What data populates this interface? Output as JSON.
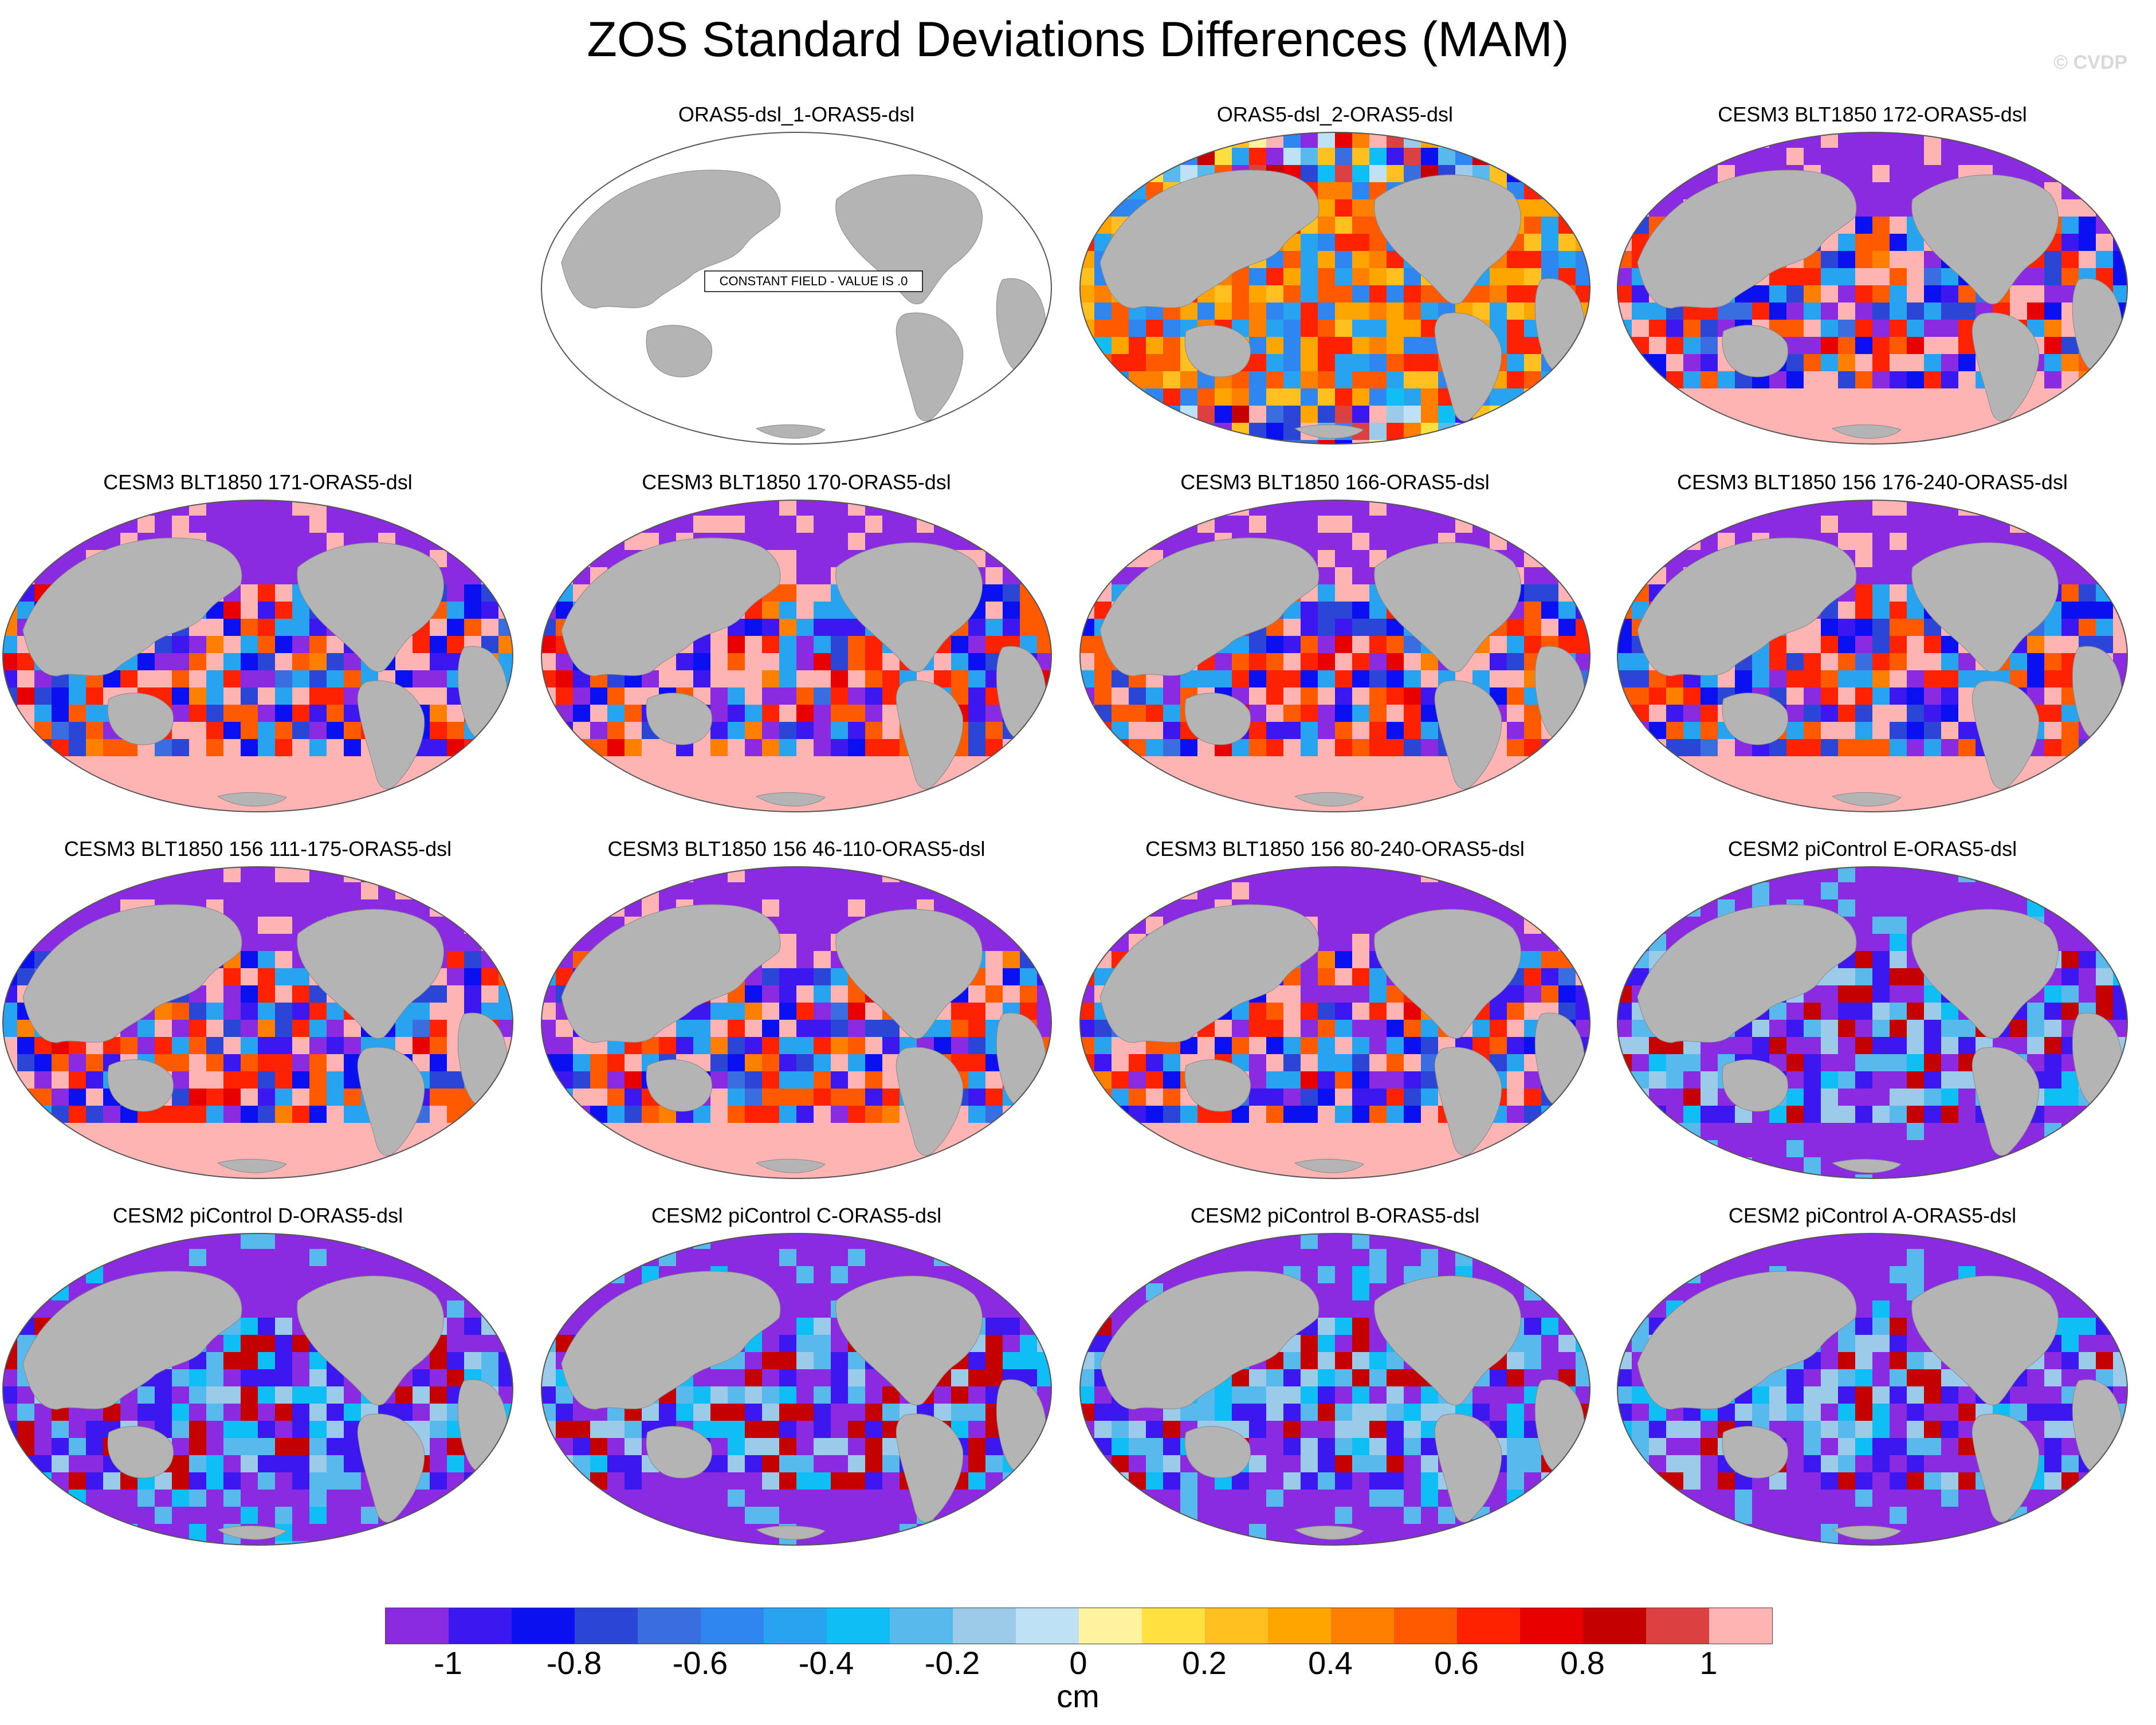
{
  "figure": {
    "title": "ZOS Standard Deviations Differences (MAM)",
    "watermark": "© CVDP"
  },
  "panels": [
    {
      "title": "ORAS5-dsl_1-ORAS5-dsl",
      "note": "CONSTANT FIELD - VALUE IS .0",
      "pattern": "constant"
    },
    {
      "title": "ORAS5-dsl_2-ORAS5-dsl",
      "pattern": "warm"
    },
    {
      "title": "CESM3 BLT1850 172-ORAS5-dsl",
      "pattern": "mixed"
    },
    {
      "title": "CESM3 BLT1850 171-ORAS5-dsl",
      "pattern": "mixed"
    },
    {
      "title": "CESM3 BLT1850 170-ORAS5-dsl",
      "pattern": "mixed"
    },
    {
      "title": "CESM3 BLT1850 166-ORAS5-dsl",
      "pattern": "mixed"
    },
    {
      "title": "CESM3 BLT1850 156 176-240-ORAS5-dsl",
      "pattern": "mixed"
    },
    {
      "title": "CESM3 BLT1850 156 111-175-ORAS5-dsl",
      "pattern": "mixed"
    },
    {
      "title": "CESM3 BLT1850 156 46-110-ORAS5-dsl",
      "pattern": "mixed"
    },
    {
      "title": "CESM3 BLT1850 156 80-240-ORAS5-dsl",
      "pattern": "mixed"
    },
    {
      "title": "CESM2 piControl E-ORAS5-dsl",
      "pattern": "cool"
    },
    {
      "title": "CESM2 piControl D-ORAS5-dsl",
      "pattern": "cool"
    },
    {
      "title": "CESM2 piControl C-ORAS5-dsl",
      "pattern": "cool"
    },
    {
      "title": "CESM2 piControl B-ORAS5-dsl",
      "pattern": "cool"
    },
    {
      "title": "CESM2 piControl A-ORAS5-dsl",
      "pattern": "cool"
    }
  ],
  "colorbar": {
    "colors": [
      "#8a2be2",
      "#3d17f0",
      "#0a10f0",
      "#2b46d6",
      "#3a6ee0",
      "#2f86f0",
      "#27a3f0",
      "#0fbef5",
      "#58b9ec",
      "#9ccbea",
      "#bfe1f5",
      "#fff3a0",
      "#ffe040",
      "#ffc020",
      "#ffa500",
      "#ff8000",
      "#ff5a00",
      "#ff2200",
      "#e80000",
      "#c40000",
      "#dc4040",
      "#ffb4b4"
    ],
    "ticks": [
      "-1",
      "-0.8",
      "-0.6",
      "-0.4",
      "-0.2",
      "0",
      "0.2",
      "0.4",
      "0.6",
      "0.8",
      "1"
    ],
    "tick_positions": [
      -1,
      -0.8,
      -0.6,
      -0.4,
      -0.2,
      0,
      0.2,
      0.4,
      0.6,
      0.8,
      1
    ],
    "range": [
      -1.1,
      1.1
    ],
    "units": "cm"
  }
}
